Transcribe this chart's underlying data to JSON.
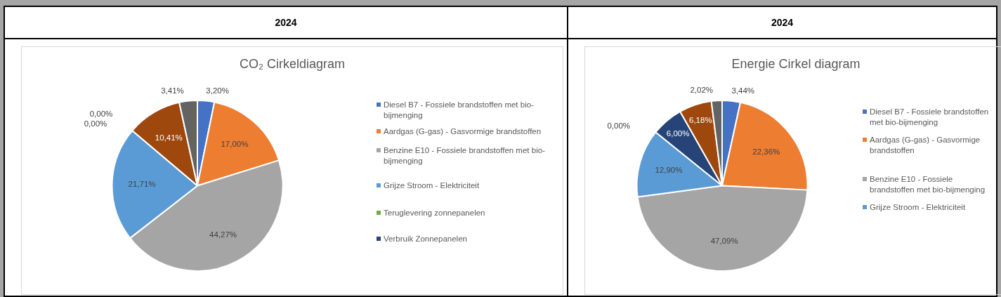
{
  "chart_data": [
    {
      "type": "pie",
      "subtitle": "2024",
      "title": "CO₂ Cirkeldiagram",
      "legend": "right",
      "categories": [
        "Diesel B7  - Fossiele brandstoffen met bio-bijmenging",
        "Aardgas (G-gas) - Gasvormige brandstoffen",
        "Benzine E10  - Fossiele brandstoffen met bio-bijmenging",
        "Grijze Stroom  - Elektriciteit",
        "Teruglevering zonnepanelen",
        "Verbruik Zonnepanelen",
        null,
        null
      ],
      "values": [
        3.2,
        17.0,
        44.27,
        21.71,
        0.0,
        0.0,
        10.41,
        3.41
      ],
      "value_labels": [
        "3,20%",
        "17,00%",
        "44,27%",
        "21,71%",
        "0,00%",
        "0,00%",
        "10,41%",
        "3,41%"
      ],
      "colors": [
        "#4472c4",
        "#ed7d31",
        "#a5a5a5",
        "#5b9bd5",
        "#70ad47",
        "#264478",
        "#9e480e",
        "#636363"
      ]
    },
    {
      "type": "pie",
      "subtitle": "2024",
      "title": "Energie Cirkel diagram",
      "legend": "right",
      "categories": [
        "Diesel B7  - Fossiele brandstoffen met bio-bijmenging",
        "Aardgas (G-gas) - Gasvormige brandstoffen",
        "Benzine E10  - Fossiele brandstoffen met bio-bijmenging",
        "Grijze Stroom  - Elektriciteit",
        null,
        null,
        null,
        null
      ],
      "values": [
        3.44,
        22.36,
        47.09,
        12.9,
        0.0,
        6.0,
        6.18,
        2.02
      ],
      "value_labels": [
        "3,44%",
        "22,36%",
        "47,09%",
        "12,90%",
        "0,00%",
        "6,00%",
        "6,18%",
        "2,02%"
      ],
      "colors": [
        "#4472c4",
        "#ed7d31",
        "#a5a5a5",
        "#5b9bd5",
        "#70ad47",
        "#264478",
        "#9e480e",
        "#636363"
      ]
    }
  ]
}
